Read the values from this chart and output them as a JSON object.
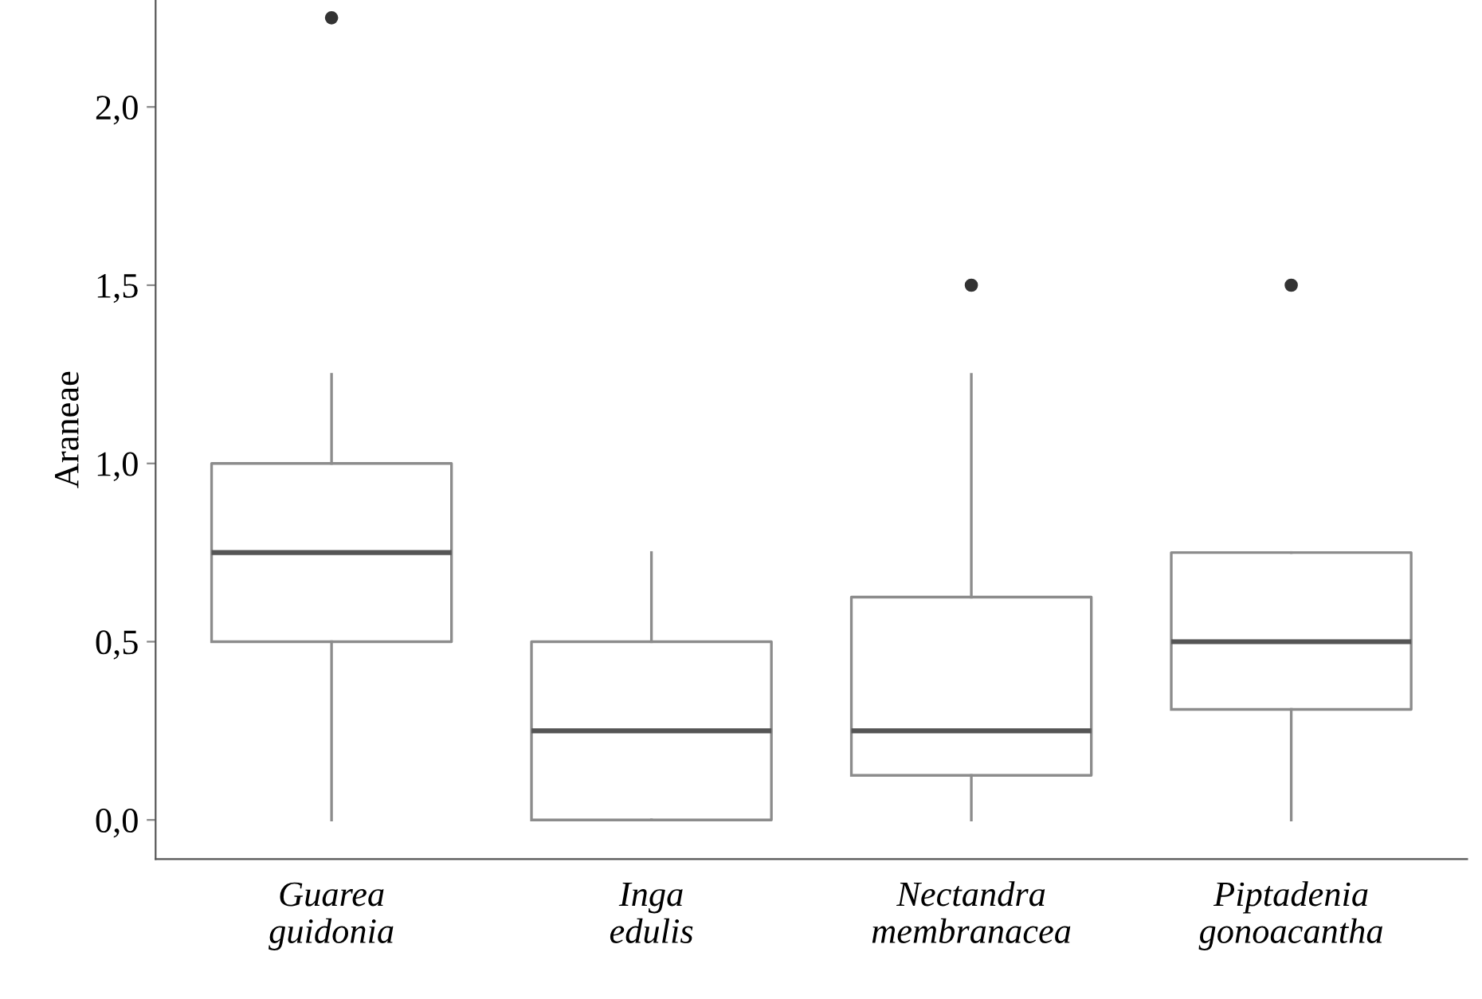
{
  "chart_data": {
    "type": "box",
    "ylabel": "Araneae",
    "categories": [
      "Guarea\nguidonia",
      "Inga\nedulis",
      "Nectandra\nmembranacea",
      "Piptadenia\ngonoacantha"
    ],
    "boxes": [
      {
        "low": 0,
        "q1": 0.5,
        "median": 0.75,
        "q3": 1.0,
        "high": 1.25,
        "outliers": [
          2.25
        ]
      },
      {
        "low": 0,
        "q1": 0,
        "median": 0.25,
        "q3": 0.5,
        "high": 0.75
      },
      {
        "low": 0,
        "q1": 0.125,
        "median": 0.25,
        "q3": 0.625,
        "high": 1.25,
        "outliers": [
          1.5
        ]
      },
      {
        "low": 0,
        "q1": 0.31,
        "median": 0.5,
        "q3": 0.75,
        "high": 0.75,
        "outliers": [
          1.5
        ]
      }
    ],
    "color": "#8c8c8c",
    "ylim": [
      -0.11,
      2.3
    ],
    "yticks": [
      {
        "value": 0,
        "label": "0,0"
      },
      {
        "value": 0.5,
        "label": "0,5"
      },
      {
        "value": 1.0,
        "label": "1,0"
      },
      {
        "value": 1.5,
        "label": "1,5"
      },
      {
        "value": 2.0,
        "label": "2,0"
      }
    ],
    "grid": false
  }
}
